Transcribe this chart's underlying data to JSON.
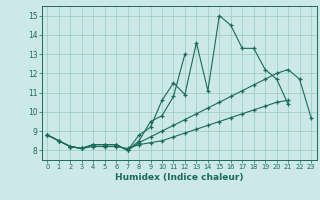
{
  "xlabel": "Humidex (Indice chaleur)",
  "background_color": "#cce8e8",
  "grid_color": "#99ccbb",
  "line_color": "#1a6b5a",
  "xlim": [
    -0.5,
    23.5
  ],
  "ylim": [
    7.5,
    15.5
  ],
  "xticks": [
    0,
    1,
    2,
    3,
    4,
    5,
    6,
    7,
    8,
    9,
    10,
    11,
    12,
    13,
    14,
    15,
    16,
    17,
    18,
    19,
    20,
    21,
    22,
    23
  ],
  "yticks": [
    8,
    9,
    10,
    11,
    12,
    13,
    14,
    15
  ],
  "series": [
    [
      8.8,
      8.5,
      8.2,
      8.1,
      8.3,
      8.3,
      8.3,
      8.0,
      8.8,
      9.2,
      10.6,
      11.5,
      10.9,
      13.6,
      11.1,
      15.0,
      14.5,
      13.3,
      13.3,
      12.2,
      11.7,
      10.4,
      null,
      null
    ],
    [
      8.8,
      8.5,
      8.2,
      8.1,
      8.3,
      8.3,
      8.3,
      8.0,
      8.5,
      9.5,
      9.8,
      10.8,
      13.0,
      null,
      null,
      null,
      null,
      null,
      null,
      null,
      null,
      null,
      null,
      null
    ],
    [
      8.8,
      8.5,
      8.2,
      8.1,
      8.2,
      8.2,
      8.2,
      8.1,
      8.3,
      8.4,
      8.5,
      8.7,
      8.9,
      9.1,
      9.3,
      9.5,
      9.7,
      9.9,
      10.1,
      10.3,
      10.5,
      10.6,
      null,
      null
    ],
    [
      8.8,
      8.5,
      8.2,
      8.1,
      8.3,
      8.3,
      8.3,
      8.0,
      8.4,
      8.7,
      9.0,
      9.3,
      9.6,
      9.9,
      10.2,
      10.5,
      10.8,
      11.1,
      11.4,
      11.7,
      12.0,
      12.2,
      11.7,
      9.7
    ]
  ]
}
